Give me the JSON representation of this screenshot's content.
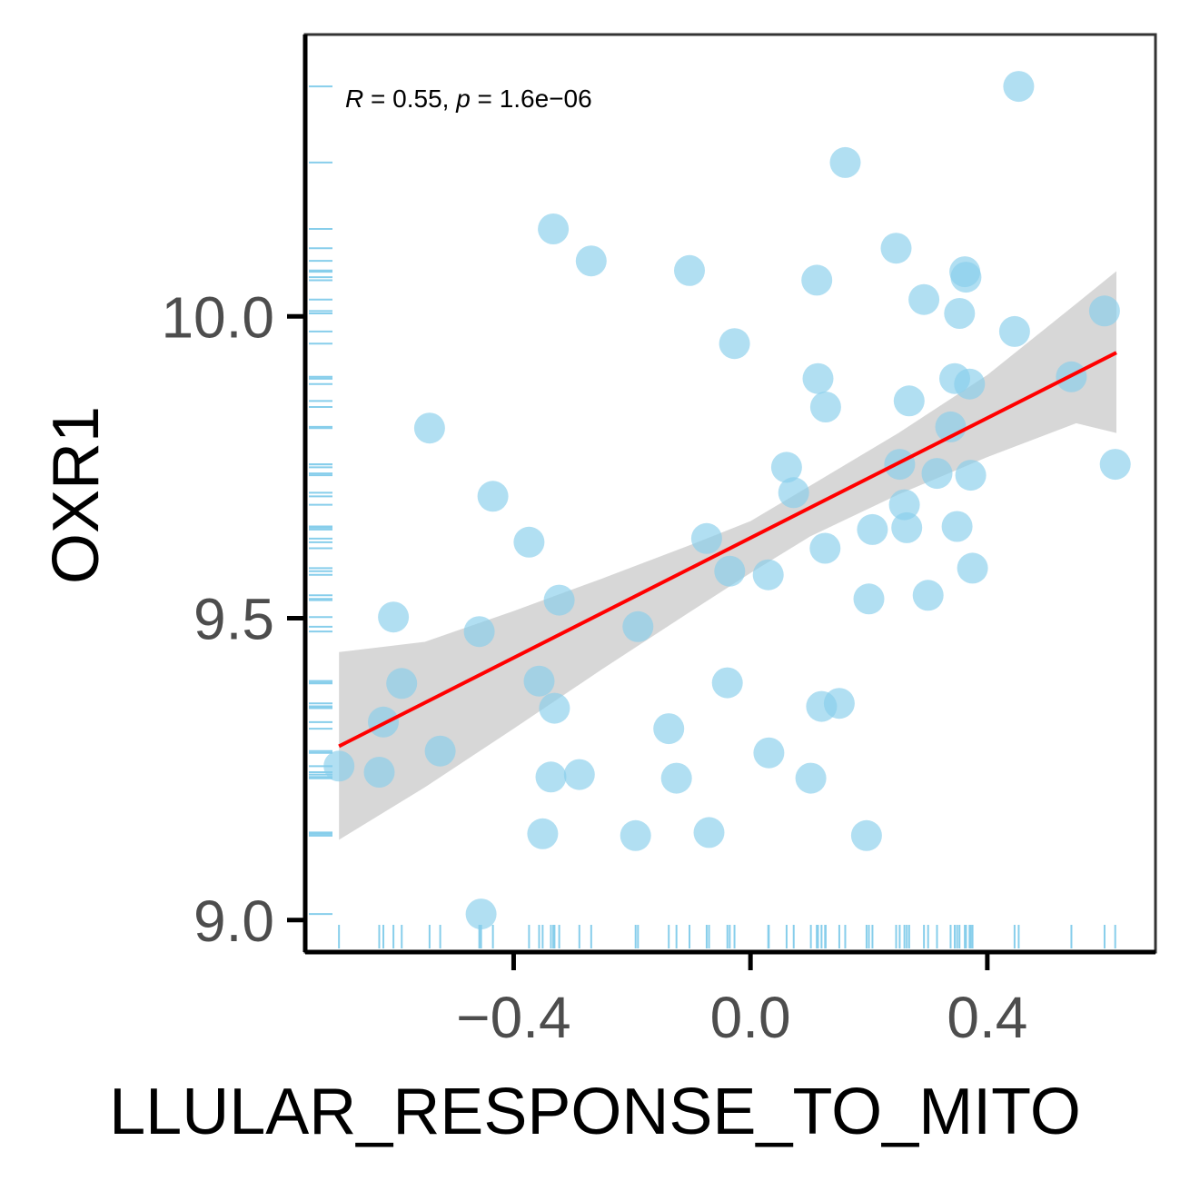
{
  "chart_data": {
    "type": "scatter",
    "xlabel": "LLULAR_RESPONSE_TO_MITO",
    "ylabel": "OXR1",
    "xlim": [
      -0.752,
      0.684
    ],
    "ylim": [
      8.947,
      10.467
    ],
    "xticks": [
      -0.4,
      0.0,
      0.4
    ],
    "xtick_labels": [
      "−0.4",
      "0.0",
      "0.4"
    ],
    "yticks": [
      9.0,
      9.5,
      10.0
    ],
    "ytick_labels": [
      "9.0",
      "9.5",
      "10.0"
    ],
    "annotation": {
      "r_symbol": "R",
      "r_text": " = 0.55, ",
      "p_symbol": "p",
      "p_text": " = 1.6e−06"
    },
    "grid": false,
    "legend": "none",
    "colors": {
      "points": "#87ceeb",
      "fit_line": "#ff0000",
      "ribbon": "#bebebe",
      "rug": "#87ceeb",
      "axis": "#000000",
      "panel_border": "#333333"
    },
    "points": [
      {
        "x": -0.695,
        "y": 9.255
      },
      {
        "x": -0.627,
        "y": 9.245
      },
      {
        "x": -0.62,
        "y": 9.328
      },
      {
        "x": -0.603,
        "y": 9.502
      },
      {
        "x": -0.589,
        "y": 9.392
      },
      {
        "x": -0.542,
        "y": 9.815
      },
      {
        "x": -0.524,
        "y": 9.28
      },
      {
        "x": -0.458,
        "y": 9.478
      },
      {
        "x": -0.455,
        "y": 9.01
      },
      {
        "x": -0.435,
        "y": 9.702
      },
      {
        "x": -0.374,
        "y": 9.626
      },
      {
        "x": -0.357,
        "y": 9.396
      },
      {
        "x": -0.351,
        "y": 9.143
      },
      {
        "x": -0.337,
        "y": 9.237
      },
      {
        "x": -0.331,
        "y": 9.351
      },
      {
        "x": -0.323,
        "y": 9.53
      },
      {
        "x": -0.333,
        "y": 10.145
      },
      {
        "x": -0.289,
        "y": 9.241
      },
      {
        "x": -0.269,
        "y": 10.092
      },
      {
        "x": -0.194,
        "y": 9.14
      },
      {
        "x": -0.19,
        "y": 9.486
      },
      {
        "x": -0.138,
        "y": 9.317
      },
      {
        "x": -0.125,
        "y": 9.235
      },
      {
        "x": -0.103,
        "y": 10.076
      },
      {
        "x": -0.07,
        "y": 9.145
      },
      {
        "x": -0.074,
        "y": 9.632
      },
      {
        "x": -0.039,
        "y": 9.393
      },
      {
        "x": -0.035,
        "y": 9.578
      },
      {
        "x": -0.027,
        "y": 9.955
      },
      {
        "x": 0.03,
        "y": 9.572
      },
      {
        "x": 0.031,
        "y": 9.277
      },
      {
        "x": 0.061,
        "y": 9.75
      },
      {
        "x": 0.073,
        "y": 9.708
      },
      {
        "x": 0.102,
        "y": 9.235
      },
      {
        "x": 0.114,
        "y": 9.897
      },
      {
        "x": 0.112,
        "y": 10.06
      },
      {
        "x": 0.12,
        "y": 9.354
      },
      {
        "x": 0.127,
        "y": 9.85
      },
      {
        "x": 0.126,
        "y": 9.616
      },
      {
        "x": 0.15,
        "y": 9.359
      },
      {
        "x": 0.16,
        "y": 10.255
      },
      {
        "x": 0.196,
        "y": 9.14
      },
      {
        "x": 0.2,
        "y": 9.532
      },
      {
        "x": 0.206,
        "y": 9.647
      },
      {
        "x": 0.246,
        "y": 10.113
      },
      {
        "x": 0.252,
        "y": 9.755
      },
      {
        "x": 0.26,
        "y": 9.688
      },
      {
        "x": 0.264,
        "y": 9.65
      },
      {
        "x": 0.268,
        "y": 9.86
      },
      {
        "x": 0.293,
        "y": 10.028
      },
      {
        "x": 0.3,
        "y": 9.538
      },
      {
        "x": 0.315,
        "y": 9.74
      },
      {
        "x": 0.338,
        "y": 9.817
      },
      {
        "x": 0.345,
        "y": 9.897
      },
      {
        "x": 0.349,
        "y": 9.652
      },
      {
        "x": 0.353,
        "y": 10.005
      },
      {
        "x": 0.362,
        "y": 10.074
      },
      {
        "x": 0.364,
        "y": 10.065
      },
      {
        "x": 0.37,
        "y": 9.888
      },
      {
        "x": 0.372,
        "y": 9.737
      },
      {
        "x": 0.375,
        "y": 9.583
      },
      {
        "x": 0.446,
        "y": 9.975
      },
      {
        "x": 0.453,
        "y": 10.381
      },
      {
        "x": 0.542,
        "y": 9.9
      },
      {
        "x": 0.598,
        "y": 10.009
      },
      {
        "x": 0.616,
        "y": 9.755
      }
    ],
    "fit_line": {
      "x": [
        -0.695,
        0.618
      ],
      "y": [
        9.288,
        9.94
      ]
    },
    "confidence_band": {
      "x": [
        -0.695,
        -0.55,
        -0.4,
        -0.25,
        -0.1,
        0.0,
        0.1,
        0.25,
        0.4,
        0.55,
        0.618
      ],
      "upper": [
        9.444,
        9.461,
        9.512,
        9.566,
        9.622,
        9.661,
        9.719,
        9.807,
        9.903,
        10.021,
        10.075
      ],
      "lower": [
        9.133,
        9.22,
        9.317,
        9.416,
        9.512,
        9.575,
        9.635,
        9.705,
        9.767,
        9.823,
        9.807
      ]
    }
  }
}
